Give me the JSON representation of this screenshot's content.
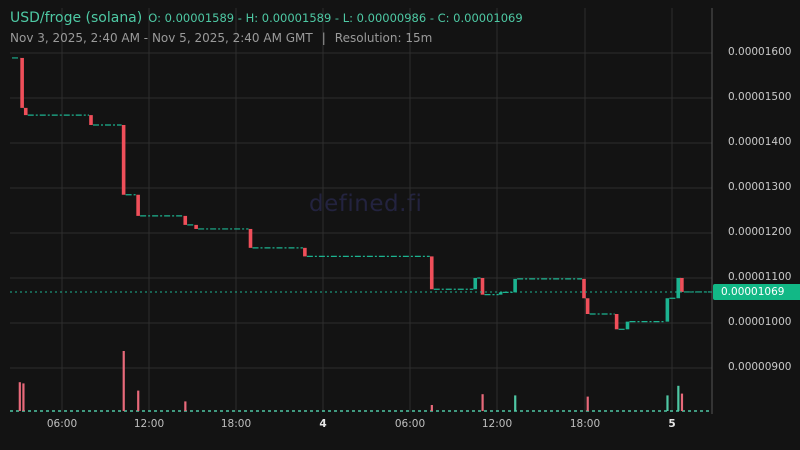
{
  "header": {
    "pair": "USD/froge (solana)",
    "ohlc": "O: 0.00001589 - H: 0.00001589 - L: 0.00000986 - C: 0.00001069",
    "range": "Nov 3, 2025, 2:40 AM - Nov 5, 2025, 2:40 AM GMT",
    "separator": "|",
    "resolution": "Resolution: 15m"
  },
  "watermark": "defined.fi",
  "colors": {
    "background": "#131313",
    "grid": "#2e2e2e",
    "up": "#1cb390",
    "down": "#ef4f5a",
    "up_volume": "#4fc7a4",
    "down_volume": "#e8697a",
    "accent_text": "#4ec9a4",
    "price_tag": "#12b886"
  },
  "y_axis": {
    "ticks": [
      "0.00001600",
      "0.00001500",
      "0.00001400",
      "0.00001300",
      "0.00001200",
      "0.00001100",
      "0.00001000",
      "0.00000900"
    ]
  },
  "x_axis": {
    "ticks": [
      {
        "label": "06:00",
        "bold": false
      },
      {
        "label": "12:00",
        "bold": false
      },
      {
        "label": "18:00",
        "bold": false
      },
      {
        "label": "4",
        "bold": true
      },
      {
        "label": "06:00",
        "bold": false
      },
      {
        "label": "12:00",
        "bold": false
      },
      {
        "label": "18:00",
        "bold": false
      },
      {
        "label": "5",
        "bold": true
      }
    ]
  },
  "current_price": "0.00001069",
  "chart_data": {
    "type": "candlestick",
    "title": "USD/froge (solana)",
    "subtitle": "Nov 3, 2025, 2:40 AM - Nov 5, 2025, 2:40 AM GMT | Resolution: 15m",
    "xlabel": "",
    "ylabel": "",
    "ylim": [
      8.1e-06,
      1.72e-05
    ],
    "grid": true,
    "ohlc_summary": {
      "open": 1.589e-05,
      "high": 1.589e-05,
      "low": 9.86e-06,
      "close": 1.069e-05
    },
    "last_price": 1.069e-05,
    "y_ticks": [
      1.6e-05,
      1.5e-05,
      1.4e-05,
      1.3e-05,
      1.2e-05,
      1.1e-05,
      1e-05,
      9e-06
    ],
    "x_ticks": [
      "06:00",
      "12:00",
      "18:00",
      "4",
      "06:00",
      "12:00",
      "18:00",
      "5"
    ],
    "price_steps": [
      {
        "time": "Nov 3 02:40",
        "price": 1.589e-05
      },
      {
        "time": "Nov 3 03:15",
        "price": 1.478e-05
      },
      {
        "time": "Nov 3 03:30",
        "price": 1.462e-05
      },
      {
        "time": "Nov 3 08:00",
        "price": 1.44e-05
      },
      {
        "time": "Nov 3 10:15",
        "price": 1.285e-05
      },
      {
        "time": "Nov 3 11:15",
        "price": 1.238e-05
      },
      {
        "time": "Nov 3 14:30",
        "price": 1.218e-05
      },
      {
        "time": "Nov 3 15:15",
        "price": 1.209e-05
      },
      {
        "time": "Nov 3 19:00",
        "price": 1.167e-05
      },
      {
        "time": "Nov 3 22:45",
        "price": 1.148e-05
      },
      {
        "time": "Nov 4 07:30",
        "price": 1.075e-05
      },
      {
        "time": "Nov 4 10:30",
        "price": 1.1e-05
      },
      {
        "time": "Nov 4 11:00",
        "price": 1.063e-05
      },
      {
        "time": "Nov 4 12:15",
        "price": 1.068e-05
      },
      {
        "time": "Nov 4 13:15",
        "price": 1.098e-05
      },
      {
        "time": "Nov 4 18:00",
        "price": 1.055e-05
      },
      {
        "time": "Nov 4 18:15",
        "price": 1.02e-05
      },
      {
        "time": "Nov 4 20:15",
        "price": 9.86e-06
      },
      {
        "time": "Nov 4 21:00",
        "price": 1.003e-05
      },
      {
        "time": "Nov 4 23:45",
        "price": 1.055e-05
      },
      {
        "time": "Nov 5 00:30",
        "price": 1.1e-05
      },
      {
        "time": "Nov 5 00:45",
        "price": 1.069e-05
      }
    ],
    "volume_bars": [
      {
        "time": "Nov 3 03:05",
        "relative": 0.48,
        "direction": "down"
      },
      {
        "time": "Nov 3 03:20",
        "relative": 0.46,
        "direction": "down"
      },
      {
        "time": "Nov 3 10:15",
        "relative": 1.0,
        "direction": "down"
      },
      {
        "time": "Nov 3 11:15",
        "relative": 0.34,
        "direction": "down"
      },
      {
        "time": "Nov 3 14:30",
        "relative": 0.16,
        "direction": "down"
      },
      {
        "time": "Nov 4 07:30",
        "relative": 0.1,
        "direction": "down"
      },
      {
        "time": "Nov 4 11:00",
        "relative": 0.28,
        "direction": "down"
      },
      {
        "time": "Nov 4 13:15",
        "relative": 0.26,
        "direction": "up"
      },
      {
        "time": "Nov 4 18:15",
        "relative": 0.24,
        "direction": "down"
      },
      {
        "time": "Nov 4 23:45",
        "relative": 0.26,
        "direction": "up"
      },
      {
        "time": "Nov 5 00:30",
        "relative": 0.42,
        "direction": "up"
      },
      {
        "time": "Nov 5 00:45",
        "relative": 0.29,
        "direction": "down"
      }
    ]
  }
}
